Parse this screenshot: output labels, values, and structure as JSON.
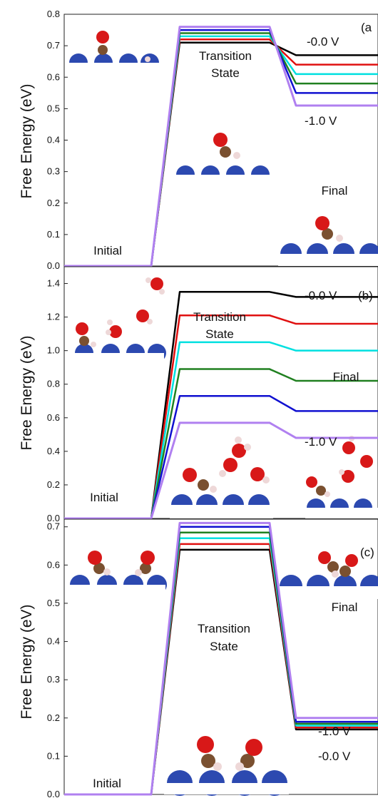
{
  "chart_data": [
    {
      "type": "line",
      "panel_label": "(a",
      "ylabel": "Free Energy (eV)",
      "ylim": [
        0,
        0.8
      ],
      "yticks": [
        "0.0",
        "0.1",
        "0.2",
        "0.3",
        "0.4",
        "0.5",
        "0.6",
        "0.7",
        "0.8"
      ],
      "x": [
        "Initial",
        "Transition State",
        "Final"
      ],
      "series": [
        {
          "color": "#000000",
          "values": [
            0.0,
            0.71,
            0.67
          ]
        },
        {
          "color": "#e01010",
          "values": [
            0.0,
            0.72,
            0.64
          ]
        },
        {
          "color": "#00e0e0",
          "values": [
            0.0,
            0.73,
            0.61
          ]
        },
        {
          "color": "#208020",
          "values": [
            0.0,
            0.74,
            0.58
          ]
        },
        {
          "color": "#1010d0",
          "values": [
            0.0,
            0.75,
            0.55
          ]
        },
        {
          "color": "#b080f0",
          "values": [
            0.0,
            0.76,
            0.51
          ]
        }
      ],
      "annotations": [
        "-0.0 V",
        "-1.0 V",
        "Transition",
        "State",
        "Final",
        "Initial"
      ]
    },
    {
      "type": "line",
      "panel_label": "(b)",
      "ylabel": "Free Energy (eV)",
      "ylim": [
        0,
        1.5
      ],
      "yticks": [
        "0.0",
        "0.2",
        "0.4",
        "0.6",
        "0.8",
        "1.0",
        "1.2",
        "1.4"
      ],
      "x": [
        "Initial",
        "Transition State",
        "Final"
      ],
      "series": [
        {
          "color": "#000000",
          "values": [
            0.0,
            1.35,
            1.32
          ]
        },
        {
          "color": "#e01010",
          "values": [
            0.0,
            1.21,
            1.16
          ]
        },
        {
          "color": "#00e0e0",
          "values": [
            0.0,
            1.05,
            1.0
          ]
        },
        {
          "color": "#208020",
          "values": [
            0.0,
            0.89,
            0.82
          ]
        },
        {
          "color": "#1010d0",
          "values": [
            0.0,
            0.73,
            0.64
          ]
        },
        {
          "color": "#b080f0",
          "values": [
            0.0,
            0.57,
            0.48
          ]
        }
      ],
      "annotations": [
        "-0.0 V",
        "-1.0 V",
        "Transition",
        "State",
        "Final",
        "Initial"
      ]
    },
    {
      "type": "line",
      "panel_label": "(c)",
      "ylabel": "Free Energy (eV)",
      "ylim": [
        0,
        0.72
      ],
      "yticks": [
        "0.0",
        "0.1",
        "0.2",
        "0.3",
        "0.4",
        "0.5",
        "0.6",
        "0.7"
      ],
      "x": [
        "Initial",
        "Transition State",
        "Final"
      ],
      "series": [
        {
          "color": "#000000",
          "values": [
            0.0,
            0.64,
            0.17
          ]
        },
        {
          "color": "#e01010",
          "values": [
            0.0,
            0.655,
            0.175
          ]
        },
        {
          "color": "#00e0e0",
          "values": [
            0.0,
            0.67,
            0.18
          ]
        },
        {
          "color": "#208020",
          "values": [
            0.0,
            0.685,
            0.185
          ]
        },
        {
          "color": "#1010d0",
          "values": [
            0.0,
            0.7,
            0.19
          ]
        },
        {
          "color": "#b080f0",
          "values": [
            0.0,
            0.71,
            0.2
          ]
        }
      ],
      "annotations": [
        "-1.0 V",
        "-0.0 V",
        "Transition",
        "State",
        "Final",
        "Initial"
      ]
    }
  ]
}
